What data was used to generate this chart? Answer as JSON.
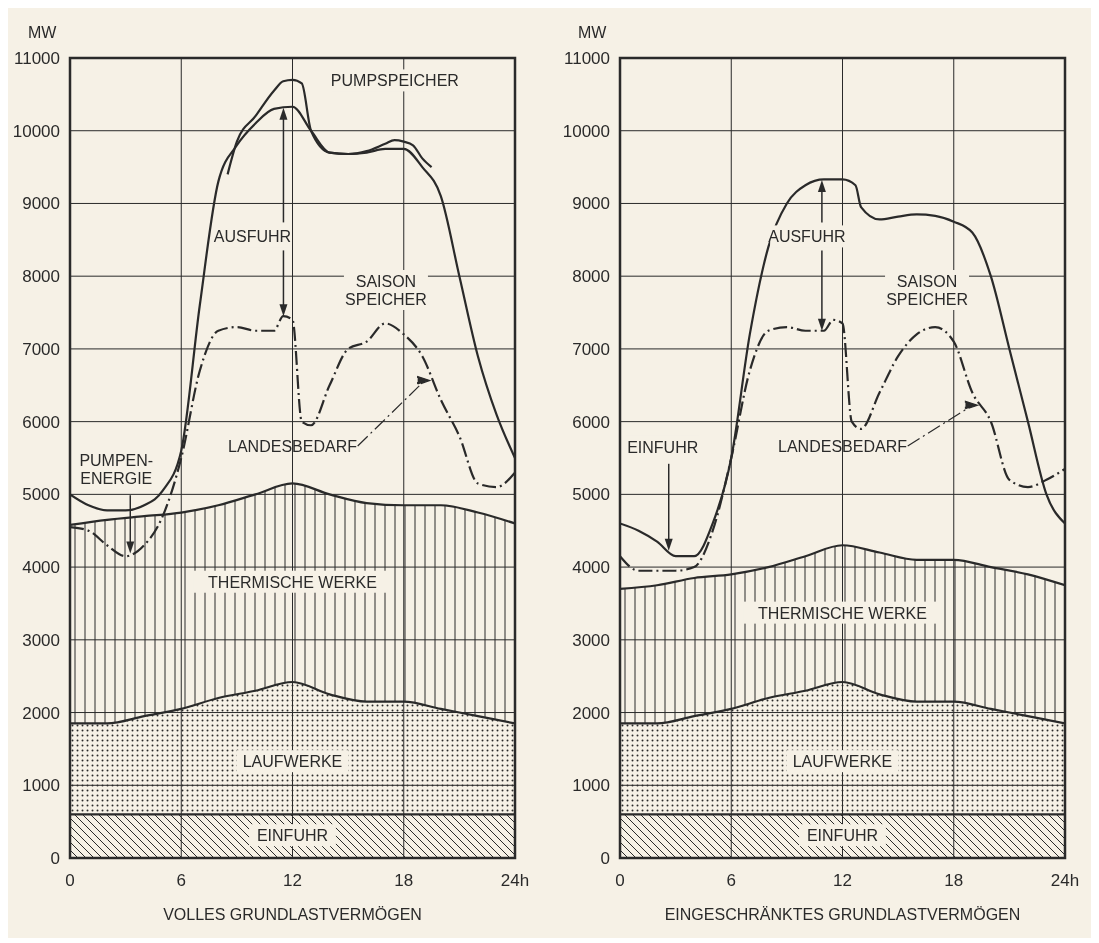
{
  "chart_data": [
    {
      "type": "line",
      "xlabel": "VOLLES GRUNDLASTVERMÖGEN",
      "ylabel": "MW",
      "xlim": [
        0,
        24
      ],
      "ylim": [
        0,
        11000
      ],
      "xticks": [
        0,
        6,
        12,
        18,
        {
          "value": 24,
          "label": "24h"
        }
      ],
      "yticks": [
        0,
        1000,
        2000,
        3000,
        4000,
        5000,
        6000,
        7000,
        8000,
        9000,
        10000,
        11000
      ],
      "grid": true,
      "series": [
        {
          "color": "#2a2a2a",
          "line_style": "solid",
          "x": [
            0,
            1,
            2,
            3,
            4,
            5,
            6,
            7,
            8,
            9,
            10,
            11,
            12,
            13,
            14,
            15,
            16,
            17,
            18,
            19,
            20,
            21,
            22,
            23,
            24
          ],
          "values": [
            5000,
            4850,
            4780,
            4780,
            4850,
            5050,
            5600,
            7600,
            9300,
            9800,
            10100,
            10300,
            10330,
            10000,
            9700,
            9680,
            9700,
            9750,
            9750,
            9500,
            9100,
            8000,
            6900,
            6100,
            5500
          ]
        },
        {
          "name": "LANDESBEDARF",
          "color": "#2a2a2a",
          "line_style": "dashed",
          "x": [
            0,
            1,
            2,
            3,
            4,
            5,
            6,
            7,
            8,
            9,
            10,
            11,
            11.5,
            12,
            12.5,
            13,
            14,
            15,
            16,
            17,
            18,
            19,
            20,
            21,
            22,
            23,
            24
          ],
          "values": [
            4550,
            4500,
            4300,
            4150,
            4300,
            4700,
            5500,
            6700,
            7250,
            7300,
            7250,
            7250,
            7450,
            7400,
            6000,
            5950,
            6500,
            7000,
            7100,
            7350,
            7200,
            6900,
            6300,
            5800,
            5150,
            5100,
            5300
          ]
        },
        {
          "color": "#2a2a2a",
          "line_style": "solid",
          "x": [
            8.5,
            9,
            10,
            11,
            11.5,
            12,
            12.5,
            13,
            14,
            15,
            16,
            17,
            17.5,
            18,
            18.5,
            19,
            19.5
          ],
          "values": [
            9400,
            9850,
            10200,
            10550,
            10680,
            10700,
            10650,
            10000,
            9700,
            9680,
            9720,
            9820,
            9870,
            9850,
            9800,
            9620,
            9500
          ]
        },
        {
          "name": "THERMISCHE WERKE",
          "type": "area",
          "color": "#2a2a2a",
          "x": [
            0,
            2,
            4,
            6,
            8,
            10,
            12,
            14,
            16,
            18,
            20,
            22,
            24
          ],
          "values": [
            4580,
            4650,
            4700,
            4750,
            4850,
            5000,
            5150,
            5000,
            4880,
            4850,
            4850,
            4750,
            4600
          ]
        },
        {
          "name": "LAUFWERKE",
          "type": "area",
          "color": "#2a2a2a",
          "x": [
            0,
            2,
            4,
            6,
            8,
            10,
            12,
            14,
            16,
            18,
            20,
            22,
            24
          ],
          "values": [
            1850,
            1850,
            1950,
            2050,
            2200,
            2300,
            2420,
            2250,
            2150,
            2150,
            2050,
            1950,
            1850
          ]
        },
        {
          "name": "EINFUHR",
          "type": "area",
          "color": "#2a2a2a",
          "x": [
            0,
            24
          ],
          "values": [
            600,
            600
          ]
        }
      ],
      "annotations": [
        "PUMPSPEICHER",
        "AUSFUHR",
        "SAISON SPEICHER",
        "PUMPEN-ENERGIE"
      ]
    },
    {
      "type": "line",
      "xlabel": "EINGESCHRÄNKTES GRUNDLASTVERMÖGEN",
      "ylabel": "MW",
      "xlim": [
        0,
        24
      ],
      "ylim": [
        0,
        11000
      ],
      "xticks": [
        0,
        6,
        12,
        18,
        {
          "value": 24,
          "label": "24h"
        }
      ],
      "yticks": [
        0,
        1000,
        2000,
        3000,
        4000,
        5000,
        6000,
        7000,
        8000,
        9000,
        10000,
        11000
      ],
      "grid": true,
      "series": [
        {
          "color": "#2a2a2a",
          "line_style": "solid",
          "x": [
            0,
            1,
            2,
            3,
            4,
            5,
            6,
            7,
            8,
            9,
            10,
            11,
            12,
            12.7,
            13,
            14,
            15,
            16,
            17,
            18,
            19,
            20,
            21,
            22,
            23,
            24
          ],
          "values": [
            4600,
            4500,
            4350,
            4150,
            4150,
            4600,
            5500,
            7200,
            8400,
            9000,
            9250,
            9330,
            9330,
            9250,
            8950,
            8780,
            8820,
            8850,
            8830,
            8750,
            8600,
            8000,
            7000,
            6000,
            5000,
            4600
          ]
        },
        {
          "name": "LANDESBEDARF",
          "color": "#2a2a2a",
          "line_style": "dashed",
          "x": [
            0,
            1,
            2,
            3,
            4,
            5,
            6,
            7,
            8,
            9,
            10,
            11,
            11.5,
            12,
            12.5,
            13,
            14,
            15,
            16,
            17,
            18,
            19,
            20,
            21,
            22,
            23,
            24
          ],
          "values": [
            4150,
            3950,
            3950,
            3950,
            4000,
            4500,
            5500,
            6700,
            7250,
            7300,
            7250,
            7250,
            7400,
            7350,
            6000,
            5900,
            6400,
            6900,
            7200,
            7300,
            7100,
            6400,
            6000,
            5200,
            5100,
            5200,
            5350
          ]
        },
        {
          "name": "THERMISCHE WERKE",
          "type": "area",
          "color": "#2a2a2a",
          "x": [
            0,
            2,
            4,
            6,
            8,
            10,
            12,
            14,
            16,
            18,
            20,
            22,
            24
          ],
          "values": [
            3700,
            3750,
            3850,
            3900,
            4000,
            4150,
            4300,
            4200,
            4100,
            4100,
            4000,
            3900,
            3750
          ]
        },
        {
          "name": "LAUFWERKE",
          "type": "area",
          "color": "#2a2a2a",
          "x": [
            0,
            2,
            4,
            6,
            8,
            10,
            12,
            14,
            16,
            18,
            20,
            22,
            24
          ],
          "values": [
            1850,
            1850,
            1950,
            2050,
            2200,
            2300,
            2420,
            2250,
            2150,
            2150,
            2050,
            1950,
            1850
          ]
        },
        {
          "name": "EINFUHR",
          "type": "area",
          "color": "#2a2a2a",
          "x": [
            0,
            24
          ],
          "values": [
            600,
            600
          ]
        }
      ],
      "annotations": [
        "AUSFUHR",
        "SAISON SPEICHER",
        "EINFUHR"
      ]
    }
  ]
}
